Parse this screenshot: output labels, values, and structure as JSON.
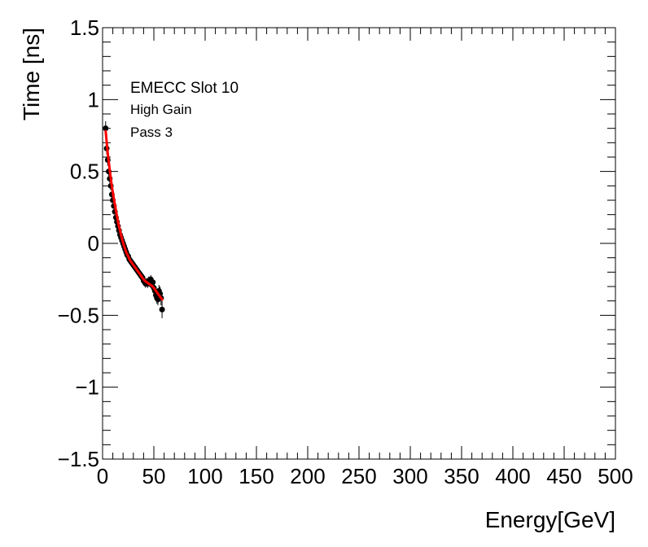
{
  "chart_data": {
    "type": "scatter",
    "legend": {
      "title": "EMECC Slot 10",
      "lines": [
        "High Gain",
        "Pass 3"
      ]
    },
    "xlabel": "Energy[GeV]",
    "ylabel": "Time [ns]",
    "xlim": [
      0,
      500
    ],
    "ylim": [
      -1.5,
      1.5
    ],
    "x_ticks": [
      {
        "value": 0,
        "label": "0"
      },
      {
        "value": 50,
        "label": "50"
      },
      {
        "value": 100,
        "label": "100"
      },
      {
        "value": 150,
        "label": "150"
      },
      {
        "value": 200,
        "label": "200"
      },
      {
        "value": 250,
        "label": "250"
      },
      {
        "value": 300,
        "label": "300"
      },
      {
        "value": 350,
        "label": "350"
      },
      {
        "value": 400,
        "label": "400"
      },
      {
        "value": 450,
        "label": "450"
      },
      {
        "value": 500,
        "label": "500"
      }
    ],
    "y_ticks": [
      {
        "value": 1.5,
        "label": "1.5"
      },
      {
        "value": 1,
        "label": "1"
      },
      {
        "value": 0.5,
        "label": "0.5"
      },
      {
        "value": 0,
        "label": "0"
      },
      {
        "value": -0.5,
        "label": "−0.5"
      },
      {
        "value": -1,
        "label": "−1"
      },
      {
        "value": -1.5,
        "label": "−1.5"
      }
    ],
    "series": [
      {
        "kind": "points_with_errors",
        "color": "#000000",
        "x": [
          3,
          4,
          5,
          6,
          7,
          8,
          9,
          10,
          11,
          12,
          13,
          14,
          15,
          16,
          17,
          18,
          19,
          20,
          21,
          22,
          23,
          24,
          25,
          26,
          27,
          28,
          29,
          30,
          31,
          32,
          33,
          34,
          35,
          36,
          37,
          38,
          39,
          40,
          41,
          42,
          43,
          44,
          45,
          46,
          47,
          48,
          49,
          50,
          51,
          52,
          53,
          54,
          55,
          56,
          57,
          58
        ],
        "y": [
          0.8,
          0.66,
          0.58,
          0.5,
          0.45,
          0.4,
          0.34,
          0.3,
          0.26,
          0.22,
          0.18,
          0.15,
          0.12,
          0.09,
          0.06,
          0.04,
          0.02,
          0.0,
          -0.02,
          -0.04,
          -0.06,
          -0.08,
          -0.09,
          -0.11,
          -0.12,
          -0.13,
          -0.14,
          -0.15,
          -0.16,
          -0.17,
          -0.18,
          -0.19,
          -0.2,
          -0.21,
          -0.22,
          -0.23,
          -0.24,
          -0.26,
          -0.27,
          -0.28,
          -0.27,
          -0.28,
          -0.26,
          -0.27,
          -0.25,
          -0.29,
          -0.27,
          -0.31,
          -0.33,
          -0.36,
          -0.38,
          -0.39,
          -0.33,
          -0.35,
          -0.38,
          -0.46
        ],
        "yerr": [
          0.05,
          0.04,
          0.04,
          0.03,
          0.03,
          0.03,
          0.03,
          0.02,
          0.02,
          0.02,
          0.02,
          0.02,
          0.02,
          0.02,
          0.02,
          0.02,
          0.02,
          0.02,
          0.02,
          0.02,
          0.02,
          0.02,
          0.02,
          0.02,
          0.02,
          0.02,
          0.02,
          0.02,
          0.02,
          0.02,
          0.02,
          0.02,
          0.02,
          0.02,
          0.02,
          0.02,
          0.02,
          0.03,
          0.03,
          0.03,
          0.03,
          0.03,
          0.03,
          0.03,
          0.03,
          0.03,
          0.03,
          0.03,
          0.04,
          0.04,
          0.04,
          0.04,
          0.04,
          0.05,
          0.05,
          0.06
        ]
      },
      {
        "kind": "fit_line",
        "color": "#ff0000",
        "x": [
          3,
          5,
          7,
          9,
          11,
          13,
          15,
          17,
          19,
          21,
          23,
          25,
          27,
          29,
          31,
          33,
          35,
          37,
          39,
          41,
          43,
          45,
          47,
          49,
          51,
          53,
          55,
          57,
          58
        ],
        "y": [
          0.78,
          0.63,
          0.51,
          0.4,
          0.31,
          0.23,
          0.15,
          0.09,
          0.03,
          -0.02,
          -0.06,
          -0.09,
          -0.12,
          -0.14,
          -0.16,
          -0.18,
          -0.2,
          -0.22,
          -0.24,
          -0.26,
          -0.27,
          -0.28,
          -0.29,
          -0.3,
          -0.32,
          -0.34,
          -0.36,
          -0.38,
          -0.39
        ]
      }
    ]
  }
}
